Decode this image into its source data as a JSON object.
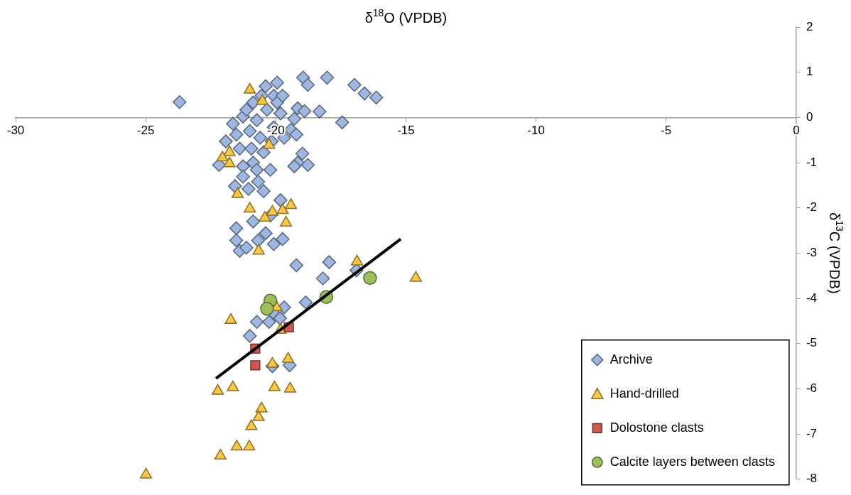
{
  "chart_data": {
    "type": "scatter",
    "xlabel": "δ$^{18}$O (VPDB)",
    "ylabel": "δ$^{13}$C (VPDB)",
    "xlim": [
      -30,
      0
    ],
    "xticks": [
      -30,
      -25,
      -20,
      -15,
      -10,
      -5,
      0
    ],
    "ylim": [
      -8,
      2
    ],
    "yticks": [
      2,
      1,
      0,
      -1,
      -2,
      -3,
      -4,
      -5,
      -6,
      -7,
      -8
    ],
    "grid": false,
    "legend": "bottom right",
    "series": [
      {
        "name": "Archive",
        "color": "#9db7e0",
        "marker": "diamond",
        "x": [
          -23.7,
          -18.95,
          -18.77,
          -18.03,
          -16.98,
          -16.59,
          -16.14,
          -20.39,
          -19.95,
          -20.55,
          -20.08,
          -19.16,
          -18.9,
          -18.32,
          -17.45,
          -19.29,
          -19.42,
          -19.21,
          -18.98,
          -19.16,
          -18.77,
          -19.29,
          -21.65,
          -21.52,
          -21.92,
          -22.18,
          -21.39,
          -21.26,
          -21.13,
          -20.87,
          -20.73,
          -21.0,
          -20.6,
          -20.94,
          -20.47,
          -20.87,
          -20.21,
          -20.08,
          -19.82,
          -19.95,
          -19.74,
          -20.34,
          -20.16,
          -19.68,
          -21.26,
          -20.73,
          -21.57,
          -21.26,
          -21.05,
          -20.68,
          -20.47,
          -19.82,
          -21.52,
          -21.52,
          -21.39,
          -21.13,
          -20.87,
          -20.68,
          -20.39,
          -20.08,
          -19.74,
          -20.21,
          -19.21,
          -17.95,
          -18.19,
          -16.9,
          -18.85,
          -19.68,
          -20.03,
          -20.26,
          -20.73,
          -21.0,
          -19.84,
          -19.47,
          -20.13
        ],
        "values": [
          0.34,
          0.88,
          0.72,
          0.88,
          0.72,
          0.53,
          0.44,
          0.69,
          0.77,
          0.48,
          0.48,
          0.2,
          0.14,
          0.13,
          -0.11,
          -0.03,
          -0.27,
          -0.38,
          -0.8,
          -1.0,
          -1.05,
          -1.08,
          -0.14,
          -0.38,
          -0.53,
          -1.05,
          -0.69,
          0.02,
          0.17,
          0.33,
          -0.06,
          -0.3,
          -0.45,
          -0.69,
          -0.77,
          -1.0,
          -1.16,
          -0.22,
          0.09,
          0.33,
          0.48,
          0.17,
          -0.53,
          -0.45,
          -1.08,
          -1.16,
          -1.52,
          -1.31,
          -1.58,
          -1.42,
          -1.63,
          -1.83,
          -2.45,
          -2.72,
          -2.95,
          -2.88,
          -2.3,
          -2.72,
          -2.56,
          -2.8,
          -2.69,
          -2.17,
          -3.27,
          -3.2,
          -3.56,
          -3.38,
          -4.09,
          -4.2,
          -4.36,
          -4.52,
          -4.52,
          -4.83,
          -4.44,
          -5.48,
          -5.5
        ]
      },
      {
        "name": "Hand-drilled",
        "color": "#fcc844",
        "marker": "triangle",
        "x": [
          -21.0,
          -20.52,
          -20.26,
          -21.78,
          -22.05,
          -21.78,
          -21.47,
          -21.0,
          -20.42,
          -20.13,
          -19.74,
          -19.42,
          -19.61,
          -20.66,
          -16.88,
          -14.62,
          -21.73,
          -20.13,
          -19.53,
          -22.23,
          -21.65,
          -20.05,
          -19.45,
          -20.55,
          -20.66,
          -20.94,
          -21.5,
          -21.02,
          -22.13,
          -24.99,
          -19.97,
          -19.82
        ],
        "values": [
          0.61,
          0.36,
          -0.61,
          -0.77,
          -0.89,
          -1.02,
          -1.7,
          -2.02,
          -2.22,
          -2.09,
          -2.05,
          -1.94,
          -2.33,
          -2.95,
          -3.19,
          -3.55,
          -4.48,
          -5.45,
          -5.34,
          -6.05,
          -5.97,
          -5.97,
          -6.0,
          -6.44,
          -6.63,
          -6.83,
          -7.28,
          -7.28,
          -7.48,
          -7.9,
          -4.2,
          -4.7
        ]
      },
      {
        "name": "Dolostone clasts",
        "color": "#d0574a",
        "marker": "square",
        "x": [
          -19.5,
          -20.79,
          -20.79
        ],
        "values": [
          -4.64,
          -5.11,
          -5.48
        ]
      },
      {
        "name": "Calcite layers between clasts",
        "color": "#9cbf5a",
        "marker": "circle",
        "x": [
          -20.21,
          -20.34,
          -18.06,
          -16.38
        ],
        "values": [
          -4.05,
          -4.23,
          -3.97,
          -3.55
        ]
      },
      {
        "type": "line",
        "color": "#000000",
        "marker": "none",
        "x": [
          -22.3,
          -15.2
        ],
        "values": [
          -5.77,
          -2.69
        ]
      }
    ]
  }
}
